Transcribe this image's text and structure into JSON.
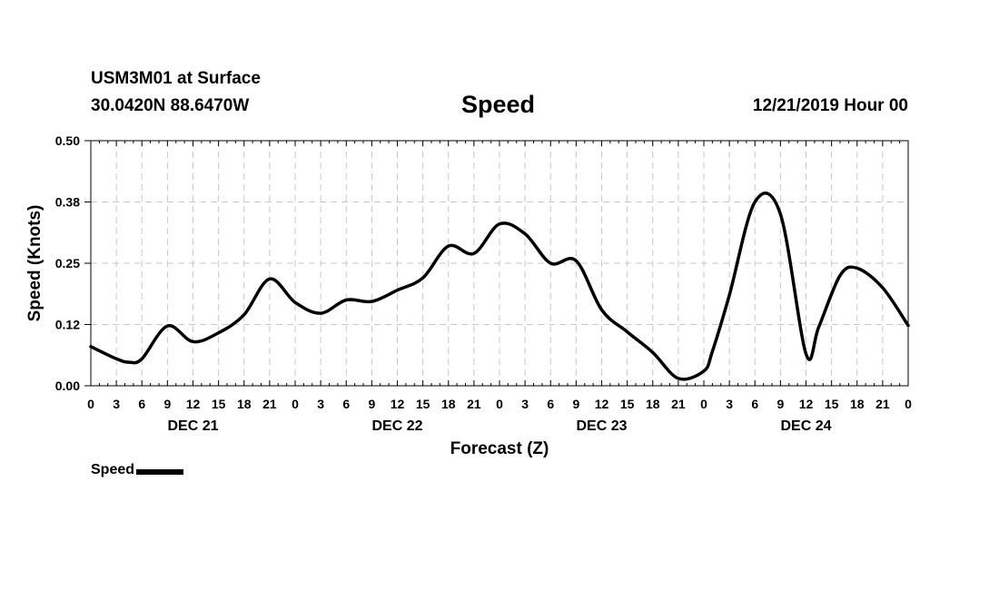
{
  "header": {
    "station": "USM3M01 at Surface",
    "coords": "30.0420N 88.6470W",
    "title": "Speed",
    "run": "12/21/2019 Hour 00"
  },
  "legend": {
    "label": "Speed",
    "color": "#000000"
  },
  "chart_data": {
    "type": "line",
    "title": "Speed",
    "xlabel": "Forecast (Z)",
    "ylabel": "Speed (Knots)",
    "xlim": [
      0,
      96
    ],
    "ylim": [
      0,
      0.5
    ],
    "grid": true,
    "legend_position": "bottom-left",
    "yticks": [
      {
        "value": 0.0,
        "label": "0.00"
      },
      {
        "value": 0.125,
        "label": "0.12"
      },
      {
        "value": 0.25,
        "label": "0.25"
      },
      {
        "value": 0.375,
        "label": "0.38"
      },
      {
        "value": 0.5,
        "label": "0.50"
      }
    ],
    "xtick_labels": [
      "0",
      "3",
      "6",
      "9",
      "12",
      "15",
      "18",
      "21",
      "0",
      "3",
      "6",
      "9",
      "12",
      "15",
      "18",
      "21",
      "0",
      "3",
      "6",
      "9",
      "12",
      "15",
      "18",
      "21",
      "0",
      "3",
      "6",
      "9",
      "12",
      "15",
      "18",
      "21",
      "0"
    ],
    "day_labels": [
      {
        "hour": 12,
        "label": "DEC 21"
      },
      {
        "hour": 36,
        "label": "DEC 22"
      },
      {
        "hour": 60,
        "label": "DEC 23"
      },
      {
        "hour": 84,
        "label": "DEC 24"
      }
    ],
    "series": [
      {
        "name": "Speed",
        "color": "#000000",
        "x": [
          0,
          3,
          4.5,
          6,
          9,
          12,
          15,
          18,
          21,
          24,
          27,
          30,
          33,
          36,
          39,
          42,
          45,
          48,
          51,
          54,
          57,
          60,
          63,
          66,
          69,
          72,
          73,
          75,
          78,
          81,
          84,
          85.5,
          88,
          90,
          93,
          96
        ],
        "y": [
          0.08,
          0.055,
          0.048,
          0.055,
          0.122,
          0.09,
          0.108,
          0.145,
          0.218,
          0.17,
          0.148,
          0.175,
          0.172,
          0.195,
          0.22,
          0.285,
          0.27,
          0.33,
          0.31,
          0.25,
          0.255,
          0.155,
          0.11,
          0.068,
          0.015,
          0.03,
          0.07,
          0.185,
          0.375,
          0.35,
          0.065,
          0.12,
          0.225,
          0.24,
          0.2,
          0.123
        ]
      }
    ]
  }
}
